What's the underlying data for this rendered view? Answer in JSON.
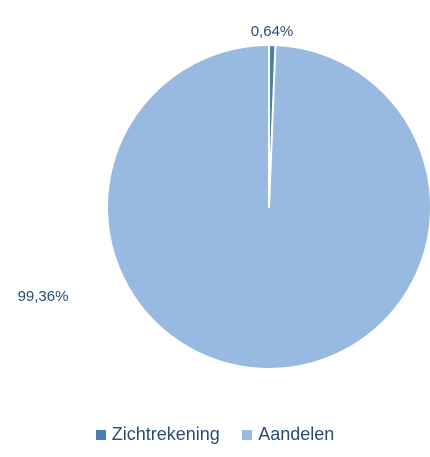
{
  "chart_data": {
    "type": "pie",
    "categories": [
      "Zichtrekening",
      "Aandelen"
    ],
    "values": [
      0.64,
      99.36
    ],
    "labels": [
      "0,64%",
      "99,36%"
    ],
    "colors": [
      "#4a7eb5",
      "#98b9e0"
    ],
    "legend_position": "bottom"
  }
}
